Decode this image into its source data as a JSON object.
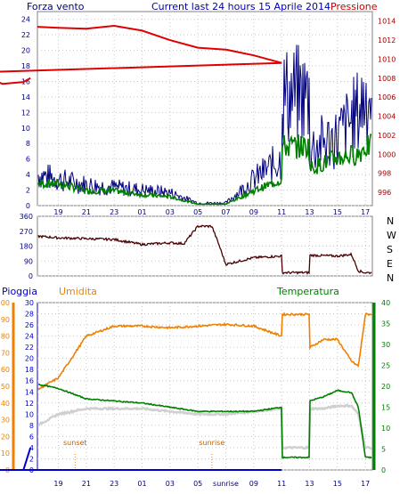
{
  "chart_data": [
    {
      "type": "line",
      "title": "Current last 24 hours 15 Aprile 2014",
      "left_label": "Forza vento",
      "right_label": "Pressione",
      "x_ticks": [
        "19",
        "21",
        "23",
        "01",
        "03",
        "05",
        "07",
        "09",
        "11",
        "13",
        "15",
        "17"
      ],
      "y_left_ticks": [
        0,
        2,
        4,
        6,
        8,
        10,
        12,
        14,
        16,
        18,
        20,
        22,
        24
      ],
      "y_right_ticks": [
        996,
        998,
        1000,
        1002,
        1004,
        1006,
        1008,
        1010,
        1012,
        1014
      ],
      "ylim_left": [
        0,
        25
      ],
      "ylim_right": [
        994.6,
        1015
      ],
      "colors": {
        "gust": "#000080",
        "avg": "#008000",
        "pressure": "#e00000",
        "axis_left": "#000080",
        "axis_right": "#a00000"
      },
      "x_hours": [
        17.5,
        19,
        21,
        23,
        1,
        3,
        5,
        7,
        9,
        11,
        13,
        15,
        16.5,
        17
      ],
      "gust_envelope": [
        6,
        5,
        4,
        3.5,
        3,
        2.5,
        0.5,
        0.5,
        5,
        9,
        11,
        13,
        18,
        21
      ],
      "avg_envelope": [
        3,
        3,
        2,
        2,
        1.5,
        1.2,
        0.2,
        0.2,
        2,
        3.5,
        5,
        6.5,
        7,
        8
      ],
      "pressure_hpa": [
        1013.4,
        1013.3,
        1013.2,
        1013.5,
        1013.0,
        1012.0,
        1011.2,
        1011.0,
        1010.4,
        1009.6,
        1008.6,
        1007.4,
        1007.6,
        1008.0
      ]
    },
    {
      "type": "line",
      "title": "",
      "y_ticks": [
        0,
        90,
        180,
        270,
        360
      ],
      "ylim": [
        0,
        360
      ],
      "compass_labels": [
        "N",
        "W",
        "S",
        "E",
        "N"
      ],
      "color": "#4a0000",
      "x_hours": [
        17.5,
        19,
        21,
        23,
        1,
        3,
        4,
        5,
        6,
        6.5,
        7,
        9,
        11,
        13,
        15,
        16,
        16.5,
        17
      ],
      "direction_deg": [
        240,
        230,
        225,
        220,
        190,
        200,
        195,
        300,
        300,
        190,
        70,
        110,
        120,
        125,
        120,
        130,
        30,
        20
      ]
    },
    {
      "type": "line",
      "title": "",
      "labels": {
        "rain": "Pioggia",
        "humidity": "Umidita",
        "temperature": "Temperatura"
      },
      "x_ticks": [
        "19",
        "21",
        "23",
        "01",
        "03",
        "05",
        "sunrise",
        "09",
        "11",
        "13",
        "15",
        "17"
      ],
      "annotations": [
        "sunset",
        "sunrise"
      ],
      "y_rain_ticks": [
        0,
        10,
        20,
        30,
        40,
        50,
        60,
        70,
        80,
        90,
        100
      ],
      "y_humidity_ticks": [
        0,
        2,
        4,
        6,
        8,
        10,
        12,
        14,
        16,
        18,
        20,
        22,
        24,
        26,
        28,
        30
      ],
      "y_temp_ticks": [
        0,
        5,
        10,
        15,
        20,
        25,
        30,
        35,
        40
      ],
      "colors": {
        "rain": "#0000cc",
        "humidity": "#f08000",
        "temperature": "#008000",
        "dewpoint": "#d0d0d0"
      },
      "x_hours": [
        17.5,
        19,
        21,
        23,
        1,
        3,
        5,
        7,
        9,
        11,
        13,
        14,
        15,
        16,
        16.5,
        17
      ],
      "humidity": [
        48,
        55,
        80,
        86,
        86,
        85,
        86,
        87,
        86,
        80,
        73,
        78,
        78,
        65,
        62,
        93
      ],
      "temperature_c": [
        20.5,
        19.5,
        17,
        16.5,
        16,
        15,
        14,
        14,
        14,
        15,
        16.5,
        17.5,
        19,
        18.5,
        15,
        3
      ],
      "dewpoint": [
        8,
        10,
        11,
        11,
        11,
        10.5,
        10,
        10,
        10.5,
        11,
        11,
        11,
        11.5,
        11.5,
        10,
        4
      ],
      "rain_mm": [
        0,
        0,
        0,
        0,
        0,
        0,
        0,
        0,
        0,
        0,
        0,
        0,
        0,
        0,
        0,
        4
      ]
    }
  ]
}
